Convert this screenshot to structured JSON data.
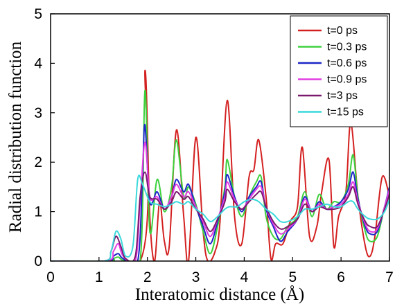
{
  "chart_data": {
    "type": "line",
    "title": "",
    "xlabel": "Interatomic distance (Å)",
    "ylabel": "Radial distribution function",
    "xlim": [
      0,
      7
    ],
    "ylim": [
      0,
      5
    ],
    "xticks": [
      0,
      1,
      2,
      3,
      4,
      5,
      6,
      7
    ],
    "yticks": [
      0,
      1,
      2,
      3,
      4,
      5
    ],
    "grid": false,
    "legend_position": "top-right",
    "series": [
      {
        "name": "t=0 ps",
        "color": "#d42020",
        "points": [
          [
            0,
            0
          ],
          [
            1.85,
            0
          ],
          [
            1.95,
            3.85
          ],
          [
            2.05,
            0.9
          ],
          [
            2.15,
            0.0
          ],
          [
            2.25,
            1.2
          ],
          [
            2.35,
            0.4
          ],
          [
            2.45,
            0.3
          ],
          [
            2.6,
            2.65
          ],
          [
            2.75,
            0.9
          ],
          [
            2.85,
            0.0
          ],
          [
            3.0,
            2.5
          ],
          [
            3.15,
            0.6
          ],
          [
            3.25,
            0.0
          ],
          [
            3.4,
            0.2
          ],
          [
            3.5,
            0.8
          ],
          [
            3.65,
            3.25
          ],
          [
            3.8,
            0.9
          ],
          [
            3.95,
            0.35
          ],
          [
            4.1,
            1.7
          ],
          [
            4.2,
            1.85
          ],
          [
            4.3,
            2.45
          ],
          [
            4.45,
            1.3
          ],
          [
            4.55,
            0.05
          ],
          [
            4.65,
            0.35
          ],
          [
            4.8,
            0.35
          ],
          [
            4.95,
            0.8
          ],
          [
            5.1,
            1.1
          ],
          [
            5.2,
            2.3
          ],
          [
            5.35,
            0.5
          ],
          [
            5.5,
            0.7
          ],
          [
            5.6,
            1.4
          ],
          [
            5.75,
            2.05
          ],
          [
            5.85,
            0.3
          ],
          [
            5.95,
            0.9
          ],
          [
            6.1,
            1.4
          ],
          [
            6.2,
            2.8
          ],
          [
            6.35,
            1.3
          ],
          [
            6.5,
            0.3
          ],
          [
            6.6,
            0.1
          ],
          [
            6.7,
            0.5
          ],
          [
            6.85,
            1.7
          ],
          [
            7.0,
            1.3
          ]
        ]
      },
      {
        "name": "t=0.3 ps",
        "color": "#3cd13c",
        "points": [
          [
            0,
            0
          ],
          [
            1.2,
            0
          ],
          [
            1.3,
            0.05
          ],
          [
            1.4,
            0.08
          ],
          [
            1.5,
            0.02
          ],
          [
            1.85,
            0
          ],
          [
            1.95,
            3.45
          ],
          [
            2.05,
            0.6
          ],
          [
            2.2,
            1.65
          ],
          [
            2.35,
            1.0
          ],
          [
            2.5,
            1.5
          ],
          [
            2.6,
            2.45
          ],
          [
            2.75,
            1.3
          ],
          [
            2.85,
            1.5
          ],
          [
            3.0,
            1.15
          ],
          [
            3.15,
            0.6
          ],
          [
            3.3,
            0.15
          ],
          [
            3.45,
            0.7
          ],
          [
            3.6,
            1.5
          ],
          [
            3.65,
            2.05
          ],
          [
            3.8,
            1.3
          ],
          [
            3.95,
            0.9
          ],
          [
            4.1,
            1.3
          ],
          [
            4.25,
            1.6
          ],
          [
            4.35,
            1.7
          ],
          [
            4.45,
            0.9
          ],
          [
            4.6,
            0.5
          ],
          [
            4.75,
            0.45
          ],
          [
            4.9,
            0.7
          ],
          [
            5.1,
            0.9
          ],
          [
            5.25,
            1.4
          ],
          [
            5.4,
            0.9
          ],
          [
            5.55,
            1.35
          ],
          [
            5.7,
            1.05
          ],
          [
            5.85,
            1.2
          ],
          [
            6.0,
            1.2
          ],
          [
            6.15,
            1.55
          ],
          [
            6.25,
            2.15
          ],
          [
            6.35,
            1.3
          ],
          [
            6.5,
            0.6
          ],
          [
            6.6,
            0.4
          ],
          [
            6.75,
            0.5
          ],
          [
            6.9,
            1.1
          ],
          [
            7.0,
            1.4
          ]
        ]
      },
      {
        "name": "t=0.6 ps",
        "color": "#1c26c8",
        "points": [
          [
            0,
            0
          ],
          [
            1.15,
            0
          ],
          [
            1.3,
            0.1
          ],
          [
            1.4,
            0.15
          ],
          [
            1.5,
            0.05
          ],
          [
            1.8,
            0
          ],
          [
            1.9,
            1.8
          ],
          [
            1.95,
            2.75
          ],
          [
            2.05,
            1.2
          ],
          [
            2.2,
            1.4
          ],
          [
            2.35,
            1.05
          ],
          [
            2.5,
            1.3
          ],
          [
            2.6,
            1.65
          ],
          [
            2.75,
            1.4
          ],
          [
            2.85,
            1.55
          ],
          [
            3.0,
            1.1
          ],
          [
            3.15,
            0.7
          ],
          [
            3.3,
            0.35
          ],
          [
            3.45,
            0.8
          ],
          [
            3.6,
            1.4
          ],
          [
            3.65,
            1.75
          ],
          [
            3.8,
            1.3
          ],
          [
            3.95,
            1.0
          ],
          [
            4.1,
            1.3
          ],
          [
            4.25,
            1.5
          ],
          [
            4.35,
            1.6
          ],
          [
            4.45,
            1.05
          ],
          [
            4.6,
            0.7
          ],
          [
            4.75,
            0.4
          ],
          [
            4.9,
            0.6
          ],
          [
            5.1,
            0.85
          ],
          [
            5.25,
            1.3
          ],
          [
            5.4,
            1.0
          ],
          [
            5.55,
            1.2
          ],
          [
            5.7,
            1.05
          ],
          [
            5.85,
            1.1
          ],
          [
            6.0,
            1.2
          ],
          [
            6.15,
            1.45
          ],
          [
            6.25,
            1.8
          ],
          [
            6.35,
            1.25
          ],
          [
            6.5,
            0.7
          ],
          [
            6.6,
            0.55
          ],
          [
            6.75,
            0.6
          ],
          [
            6.9,
            1.1
          ],
          [
            7.0,
            1.5
          ]
        ]
      },
      {
        "name": "t=0.9 ps",
        "color": "#e23ce2",
        "points": [
          [
            0,
            0
          ],
          [
            1.15,
            0
          ],
          [
            1.3,
            0.2
          ],
          [
            1.4,
            0.35
          ],
          [
            1.5,
            0.1
          ],
          [
            1.75,
            0
          ],
          [
            1.85,
            1.2
          ],
          [
            1.95,
            2.4
          ],
          [
            2.05,
            1.3
          ],
          [
            2.2,
            1.3
          ],
          [
            2.35,
            1.05
          ],
          [
            2.5,
            1.3
          ],
          [
            2.6,
            1.55
          ],
          [
            2.75,
            1.3
          ],
          [
            2.85,
            1.4
          ],
          [
            3.0,
            1.1
          ],
          [
            3.15,
            0.8
          ],
          [
            3.3,
            0.5
          ],
          [
            3.45,
            0.85
          ],
          [
            3.6,
            1.3
          ],
          [
            3.65,
            1.6
          ],
          [
            3.8,
            1.25
          ],
          [
            3.95,
            1.05
          ],
          [
            4.1,
            1.25
          ],
          [
            4.25,
            1.45
          ],
          [
            4.35,
            1.5
          ],
          [
            4.45,
            1.1
          ],
          [
            4.6,
            0.75
          ],
          [
            4.75,
            0.55
          ],
          [
            4.9,
            0.65
          ],
          [
            5.1,
            0.85
          ],
          [
            5.25,
            1.25
          ],
          [
            5.4,
            1.0
          ],
          [
            5.55,
            1.15
          ],
          [
            5.7,
            1.05
          ],
          [
            5.85,
            1.1
          ],
          [
            6.0,
            1.15
          ],
          [
            6.15,
            1.35
          ],
          [
            6.25,
            1.6
          ],
          [
            6.35,
            1.2
          ],
          [
            6.5,
            0.75
          ],
          [
            6.6,
            0.6
          ],
          [
            6.75,
            0.65
          ],
          [
            6.9,
            1.1
          ],
          [
            7.0,
            1.45
          ]
        ]
      },
      {
        "name": "t=3 ps",
        "color": "#7a1a6e",
        "points": [
          [
            0,
            0
          ],
          [
            1.1,
            0
          ],
          [
            1.25,
            0.2
          ],
          [
            1.35,
            0.5
          ],
          [
            1.45,
            0.3
          ],
          [
            1.55,
            0.05
          ],
          [
            1.75,
            0.1
          ],
          [
            1.85,
            1.3
          ],
          [
            1.95,
            1.8
          ],
          [
            2.05,
            1.3
          ],
          [
            2.2,
            1.25
          ],
          [
            2.35,
            1.05
          ],
          [
            2.5,
            1.2
          ],
          [
            2.6,
            1.4
          ],
          [
            2.75,
            1.25
          ],
          [
            2.85,
            1.3
          ],
          [
            3.0,
            1.05
          ],
          [
            3.15,
            0.85
          ],
          [
            3.3,
            0.6
          ],
          [
            3.45,
            0.85
          ],
          [
            3.6,
            1.2
          ],
          [
            3.65,
            1.45
          ],
          [
            3.8,
            1.2
          ],
          [
            3.95,
            1.05
          ],
          [
            4.1,
            1.2
          ],
          [
            4.25,
            1.35
          ],
          [
            4.35,
            1.4
          ],
          [
            4.45,
            1.1
          ],
          [
            4.6,
            0.8
          ],
          [
            4.75,
            0.65
          ],
          [
            4.9,
            0.7
          ],
          [
            5.1,
            0.85
          ],
          [
            5.25,
            1.15
          ],
          [
            5.4,
            1.0
          ],
          [
            5.55,
            1.1
          ],
          [
            5.7,
            1.05
          ],
          [
            5.85,
            1.05
          ],
          [
            6.0,
            1.1
          ],
          [
            6.15,
            1.3
          ],
          [
            6.25,
            1.5
          ],
          [
            6.35,
            1.15
          ],
          [
            6.5,
            0.8
          ],
          [
            6.6,
            0.7
          ],
          [
            6.75,
            0.7
          ],
          [
            6.9,
            1.05
          ],
          [
            7.0,
            1.35
          ]
        ]
      },
      {
        "name": "t=15 ps",
        "color": "#3ad8dc",
        "points": [
          [
            0,
            0
          ],
          [
            1.1,
            0
          ],
          [
            1.25,
            0.2
          ],
          [
            1.35,
            0.6
          ],
          [
            1.45,
            0.45
          ],
          [
            1.55,
            0.1
          ],
          [
            1.7,
            0.3
          ],
          [
            1.8,
            1.65
          ],
          [
            1.9,
            1.55
          ],
          [
            2.05,
            1.2
          ],
          [
            2.2,
            1.15
          ],
          [
            2.35,
            1.1
          ],
          [
            2.5,
            1.15
          ],
          [
            2.6,
            1.2
          ],
          [
            2.75,
            1.15
          ],
          [
            2.85,
            1.2
          ],
          [
            3.0,
            1.05
          ],
          [
            3.15,
            0.95
          ],
          [
            3.3,
            0.8
          ],
          [
            3.45,
            0.9
          ],
          [
            3.6,
            1.05
          ],
          [
            3.7,
            1.1
          ],
          [
            3.85,
            1.1
          ],
          [
            4.0,
            1.2
          ],
          [
            4.15,
            1.25
          ],
          [
            4.3,
            1.2
          ],
          [
            4.45,
            1.05
          ],
          [
            4.6,
            0.95
          ],
          [
            4.75,
            0.8
          ],
          [
            4.9,
            0.8
          ],
          [
            5.1,
            0.9
          ],
          [
            5.25,
            1.05
          ],
          [
            5.4,
            1.05
          ],
          [
            5.55,
            1.1
          ],
          [
            5.7,
            1.15
          ],
          [
            5.85,
            1.1
          ],
          [
            6.0,
            1.1
          ],
          [
            6.15,
            1.2
          ],
          [
            6.25,
            1.2
          ],
          [
            6.35,
            1.05
          ],
          [
            6.5,
            0.9
          ],
          [
            6.6,
            0.85
          ],
          [
            6.75,
            0.85
          ],
          [
            6.9,
            1.0
          ],
          [
            7.0,
            1.25
          ]
        ]
      }
    ]
  }
}
